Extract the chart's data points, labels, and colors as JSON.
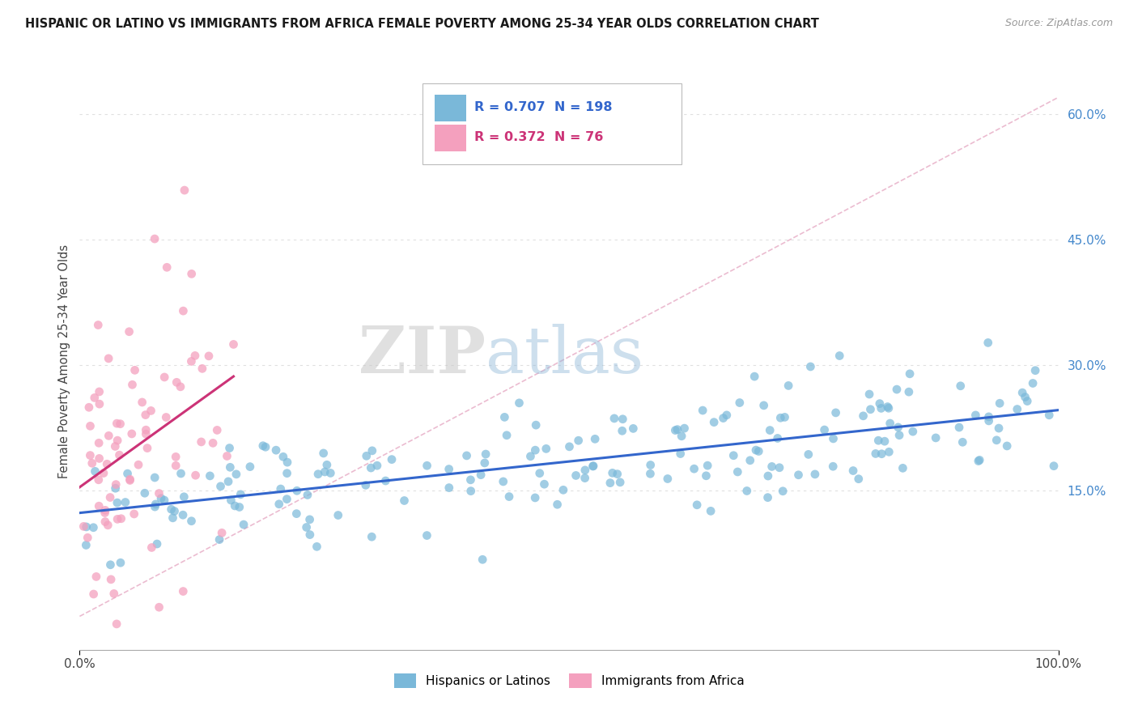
{
  "title": "HISPANIC OR LATINO VS IMMIGRANTS FROM AFRICA FEMALE POVERTY AMONG 25-34 YEAR OLDS CORRELATION CHART",
  "source": "Source: ZipAtlas.com",
  "ylabel": "Female Poverty Among 25-34 Year Olds",
  "xlim": [
    0,
    1.0
  ],
  "ylim": [
    -0.04,
    0.65
  ],
  "ytick_positions": [
    0.15,
    0.3,
    0.45,
    0.6
  ],
  "ytick_labels": [
    "15.0%",
    "30.0%",
    "45.0%",
    "60.0%"
  ],
  "series1_color": "#7ab8d9",
  "series2_color": "#f4a0be",
  "series1_label": "Hispanics or Latinos",
  "series2_label": "Immigrants from Africa",
  "R1": 0.707,
  "N1": 198,
  "R2": 0.372,
  "N2": 76,
  "legend_box_color1": "#7ab8d9",
  "legend_box_color2": "#f4a0be",
  "watermark_zip": "ZIP",
  "watermark_atlas": "atlas",
  "trend1_color": "#3366cc",
  "trend2_color": "#cc3377",
  "reference_line_color": "#e8b0c8",
  "background_color": "#ffffff",
  "grid_color": "#e0e0e0",
  "seed": 99
}
